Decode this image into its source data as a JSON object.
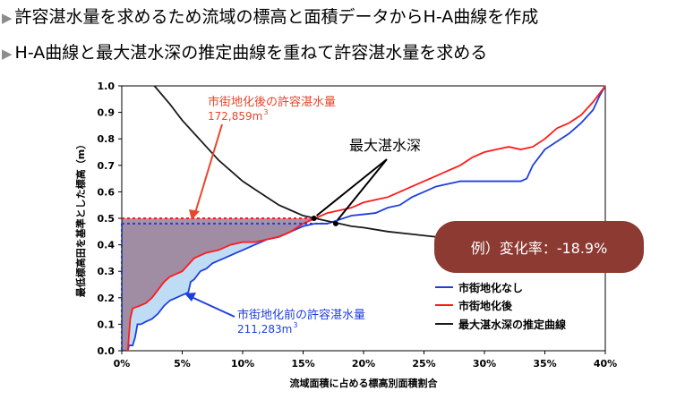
{
  "bullets": [
    "許容湛水量を求めるため流域の標高と面積データからH-A曲線を作成",
    "H-A曲線と最大湛水深の推定曲線を重ねて許容湛水量を求める"
  ],
  "chart_data": {
    "type": "line",
    "xlabel": "流域面積に占める標高別面積割合",
    "ylabel": "最低標高田を基準とした標高（m）",
    "xlim": [
      0,
      0.4
    ],
    "ylim": [
      0,
      1.0
    ],
    "x_ticks": [
      "0%",
      "5%",
      "10%",
      "15%",
      "20%",
      "25%",
      "30%",
      "35%",
      "40%"
    ],
    "y_ticks": [
      "0.0",
      "0.1",
      "0.2",
      "0.3",
      "0.4",
      "0.5",
      "0.6",
      "0.7",
      "0.8",
      "0.9",
      "1.0"
    ],
    "legend_position": "bottom-right",
    "series": [
      {
        "name": "市街地化なし",
        "color": "#1f3fdc",
        "points": [
          [
            0.005,
            0.0
          ],
          [
            0.006,
            0.02
          ],
          [
            0.009,
            0.02
          ],
          [
            0.011,
            0.05
          ],
          [
            0.013,
            0.1
          ],
          [
            0.016,
            0.1
          ],
          [
            0.02,
            0.11
          ],
          [
            0.025,
            0.12
          ],
          [
            0.03,
            0.14
          ],
          [
            0.035,
            0.17
          ],
          [
            0.04,
            0.19
          ],
          [
            0.045,
            0.2
          ],
          [
            0.05,
            0.21
          ],
          [
            0.055,
            0.22
          ],
          [
            0.057,
            0.26
          ],
          [
            0.06,
            0.27
          ],
          [
            0.065,
            0.3
          ],
          [
            0.07,
            0.31
          ],
          [
            0.075,
            0.33
          ],
          [
            0.08,
            0.34
          ],
          [
            0.085,
            0.35
          ],
          [
            0.09,
            0.36
          ],
          [
            0.095,
            0.37
          ],
          [
            0.1,
            0.38
          ],
          [
            0.11,
            0.4
          ],
          [
            0.12,
            0.42
          ],
          [
            0.13,
            0.43
          ],
          [
            0.14,
            0.45
          ],
          [
            0.15,
            0.47
          ],
          [
            0.16,
            0.48
          ],
          [
            0.17,
            0.48
          ],
          [
            0.18,
            0.495
          ],
          [
            0.19,
            0.51
          ],
          [
            0.2,
            0.515
          ],
          [
            0.21,
            0.52
          ],
          [
            0.22,
            0.54
          ],
          [
            0.23,
            0.55
          ],
          [
            0.24,
            0.58
          ],
          [
            0.25,
            0.6
          ],
          [
            0.26,
            0.62
          ],
          [
            0.27,
            0.63
          ],
          [
            0.28,
            0.64
          ],
          [
            0.29,
            0.64
          ],
          [
            0.3,
            0.64
          ],
          [
            0.31,
            0.64
          ],
          [
            0.32,
            0.64
          ],
          [
            0.33,
            0.64
          ],
          [
            0.335,
            0.65
          ],
          [
            0.34,
            0.7
          ],
          [
            0.35,
            0.76
          ],
          [
            0.36,
            0.79
          ],
          [
            0.37,
            0.82
          ],
          [
            0.38,
            0.86
          ],
          [
            0.39,
            0.91
          ],
          [
            0.395,
            0.96
          ],
          [
            0.4,
            1.0
          ]
        ]
      },
      {
        "name": "市街地化後",
        "color": "#ff1a1a",
        "points": [
          [
            0.005,
            0.0
          ],
          [
            0.007,
            0.12
          ],
          [
            0.009,
            0.16
          ],
          [
            0.015,
            0.17
          ],
          [
            0.02,
            0.18
          ],
          [
            0.025,
            0.2
          ],
          [
            0.03,
            0.23
          ],
          [
            0.035,
            0.26
          ],
          [
            0.04,
            0.28
          ],
          [
            0.045,
            0.29
          ],
          [
            0.05,
            0.3
          ],
          [
            0.06,
            0.35
          ],
          [
            0.07,
            0.37
          ],
          [
            0.08,
            0.38
          ],
          [
            0.09,
            0.4
          ],
          [
            0.1,
            0.41
          ],
          [
            0.11,
            0.41
          ],
          [
            0.12,
            0.42
          ],
          [
            0.13,
            0.43
          ],
          [
            0.14,
            0.45
          ],
          [
            0.15,
            0.48
          ],
          [
            0.16,
            0.5
          ],
          [
            0.17,
            0.52
          ],
          [
            0.18,
            0.53
          ],
          [
            0.19,
            0.54
          ],
          [
            0.2,
            0.56
          ],
          [
            0.21,
            0.57
          ],
          [
            0.22,
            0.58
          ],
          [
            0.23,
            0.6
          ],
          [
            0.24,
            0.62
          ],
          [
            0.25,
            0.64
          ],
          [
            0.26,
            0.66
          ],
          [
            0.27,
            0.68
          ],
          [
            0.28,
            0.7
          ],
          [
            0.29,
            0.73
          ],
          [
            0.3,
            0.75
          ],
          [
            0.31,
            0.76
          ],
          [
            0.32,
            0.77
          ],
          [
            0.33,
            0.76
          ],
          [
            0.34,
            0.77
          ],
          [
            0.35,
            0.8
          ],
          [
            0.36,
            0.84
          ],
          [
            0.37,
            0.86
          ],
          [
            0.38,
            0.89
          ],
          [
            0.39,
            0.94
          ],
          [
            0.4,
            1.0
          ]
        ]
      },
      {
        "name": "最大湛水深の推定曲線",
        "color": "#1a1a1a",
        "points": [
          [
            0.027,
            1.0
          ],
          [
            0.04,
            0.93
          ],
          [
            0.05,
            0.87
          ],
          [
            0.06,
            0.82
          ],
          [
            0.07,
            0.77
          ],
          [
            0.08,
            0.72
          ],
          [
            0.09,
            0.68
          ],
          [
            0.1,
            0.64
          ],
          [
            0.11,
            0.61
          ],
          [
            0.12,
            0.58
          ],
          [
            0.13,
            0.55
          ],
          [
            0.14,
            0.53
          ],
          [
            0.15,
            0.51
          ],
          [
            0.16,
            0.5
          ],
          [
            0.17,
            0.49
          ],
          [
            0.18,
            0.48
          ],
          [
            0.19,
            0.47
          ],
          [
            0.2,
            0.465
          ],
          [
            0.22,
            0.45
          ],
          [
            0.24,
            0.44
          ],
          [
            0.26,
            0.43
          ]
        ]
      }
    ],
    "annotations": {
      "after_title": "市街地化後の許容湛水量",
      "after_value": "172,859m",
      "after_sup": "3",
      "after_color": "#e8462a",
      "before_title": "市街地化前の許容湛水量",
      "before_value": "211,283m",
      "before_sup": "3",
      "before_color": "#1f3fdc",
      "max_depth_label": "最大湛水深",
      "example_label": "例）変化率：-18.9%",
      "example_bg": "#8c3a32"
    },
    "shading": {
      "after_level": 0.5,
      "before_level": 0.48,
      "after_fill": "#9a7f95",
      "before_fill": "#bfdcf5"
    },
    "intersections": [
      [
        0.159,
        0.5
      ],
      [
        0.177,
        0.48
      ]
    ]
  }
}
